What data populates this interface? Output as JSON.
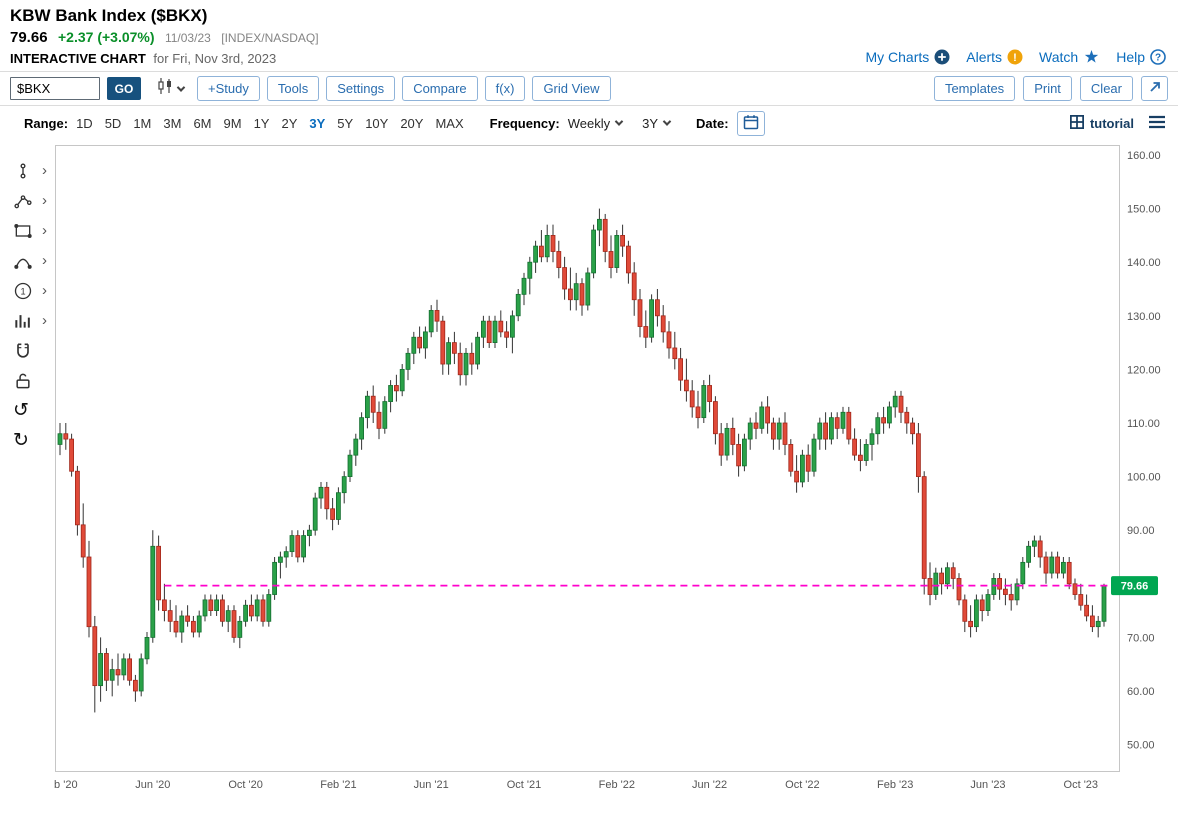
{
  "header": {
    "title": "KBW Bank Index ($BKX)",
    "price": "79.66",
    "change": "+2.37 (+3.07%)",
    "quote_date": "11/03/23",
    "exchange": "[INDEX/NASDAQ]",
    "chart_label": "INTERACTIVE CHART",
    "chart_date": "for Fri, Nov 3rd, 2023",
    "links": [
      {
        "label": "My Charts",
        "icon": "plus-circle"
      },
      {
        "label": "Alerts",
        "icon": "alert-circle"
      },
      {
        "label": "Watch",
        "icon": "star"
      },
      {
        "label": "Help",
        "icon": "question-circle"
      }
    ]
  },
  "toolbar": {
    "symbol_value": "$BKX",
    "go_label": "GO",
    "buttons": [
      "+Study",
      "Tools",
      "Settings",
      "Compare",
      "f(x)",
      "Grid View"
    ],
    "right_buttons": [
      "Templates",
      "Print",
      "Clear"
    ]
  },
  "rangebar": {
    "range_label": "Range:",
    "ranges": [
      "1D",
      "5D",
      "1M",
      "3M",
      "6M",
      "9M",
      "1Y",
      "2Y",
      "3Y",
      "5Y",
      "10Y",
      "20Y",
      "MAX"
    ],
    "selected_range": "3Y",
    "frequency_label": "Frequency:",
    "frequency_value": "Weekly",
    "period_value": "3Y",
    "date_label": "Date:",
    "tutorial_label": "tutorial"
  },
  "icons": {
    "chart_type": "candlestick-icon",
    "popout": "open-in-new-icon",
    "calendar": "calendar-icon",
    "tutorial": "grid-icon",
    "menu": "hamburger-icon",
    "select_caret": "chevron-down-icon",
    "submenu_glyph": "›"
  },
  "drawing_tools": [
    {
      "name": "annotation",
      "submenu": true
    },
    {
      "name": "line-studies",
      "submenu": true
    },
    {
      "name": "shapes",
      "submenu": true
    },
    {
      "name": "arcs",
      "submenu": true
    },
    {
      "name": "numbered-notes",
      "submenu": true
    },
    {
      "name": "symbols",
      "submenu": true
    },
    {
      "name": "magnet",
      "submenu": false
    },
    {
      "name": "unlock",
      "submenu": false
    },
    {
      "name": "undo",
      "submenu": false
    },
    {
      "name": "redo",
      "submenu": false
    }
  ],
  "colors": {
    "accent_blue": "#0a6cbd",
    "button_border": "#8fb3d9",
    "button_text": "#2a6daf",
    "go_bg": "#17517e",
    "positive_green": "#0a8f29",
    "up": "#2aa148",
    "up_stroke": "#156f31",
    "down": "#e04a39",
    "down_stroke": "#a1271b",
    "wick": "#333333",
    "price_line": "#ff00cc",
    "badge_bg": "#00a651",
    "alert_orange": "#f0a30a",
    "dark_navy": "#173e63",
    "axis_text": "#555555",
    "border_gray": "#dcdcdc"
  },
  "chart_data": {
    "type": "candlestick",
    "symbol": "$BKX",
    "title": "KBW Bank Index ($BKX), Weekly, 3Y",
    "frequency": "Weekly",
    "range": "3Y",
    "grid": false,
    "last_price": 79.66,
    "price_line": {
      "value": 79.66,
      "label": "79.66",
      "start_index": 18
    },
    "y_axis": {
      "min": 50,
      "max": 160,
      "step": 10
    },
    "y_ticks": [
      {
        "value": 160,
        "label": "160.00"
      },
      {
        "value": 150,
        "label": "150.00"
      },
      {
        "value": 140,
        "label": "140.00"
      },
      {
        "value": 130,
        "label": "130.00"
      },
      {
        "value": 120,
        "label": "120.00"
      },
      {
        "value": 110,
        "label": "110.00"
      },
      {
        "value": 100,
        "label": "100.00"
      },
      {
        "value": 90,
        "label": "90.00"
      },
      {
        "value": 80,
        "label": "80.00"
      },
      {
        "value": 70,
        "label": "70.00"
      },
      {
        "value": 60,
        "label": "60.00"
      },
      {
        "value": 50,
        "label": "50.00"
      }
    ],
    "x_ticks": [
      {
        "index": 1,
        "label": "b '20"
      },
      {
        "index": 16,
        "label": "Jun '20"
      },
      {
        "index": 32,
        "label": "Oct '20"
      },
      {
        "index": 48,
        "label": "Feb '21"
      },
      {
        "index": 64,
        "label": "Jun '21"
      },
      {
        "index": 80,
        "label": "Oct '21"
      },
      {
        "index": 96,
        "label": "Feb '22"
      },
      {
        "index": 112,
        "label": "Jun '22"
      },
      {
        "index": 128,
        "label": "Oct '22"
      },
      {
        "index": 144,
        "label": "Feb '23"
      },
      {
        "index": 160,
        "label": "Jun '23"
      },
      {
        "index": 176,
        "label": "Oct '23"
      }
    ],
    "ohlc": [
      [
        106,
        110,
        104,
        108
      ],
      [
        108,
        110,
        105,
        107
      ],
      [
        107,
        108,
        100,
        101
      ],
      [
        101,
        102,
        89,
        91
      ],
      [
        91,
        95,
        83,
        85
      ],
      [
        85,
        88,
        70,
        72
      ],
      [
        72,
        74,
        56,
        61
      ],
      [
        61,
        70,
        58,
        67
      ],
      [
        67,
        68,
        60,
        62
      ],
      [
        62,
        66,
        59,
        64
      ],
      [
        64,
        67,
        61,
        63
      ],
      [
        63,
        67,
        62,
        66
      ],
      [
        66,
        67,
        61,
        62
      ],
      [
        62,
        63,
        58,
        60
      ],
      [
        60,
        67,
        59,
        66
      ],
      [
        66,
        71,
        65,
        70
      ],
      [
        70,
        90,
        69,
        87
      ],
      [
        87,
        89,
        75,
        77
      ],
      [
        77,
        80,
        73,
        75
      ],
      [
        75,
        77,
        71,
        73
      ],
      [
        73,
        76,
        70,
        71
      ],
      [
        71,
        75,
        69,
        74
      ],
      [
        74,
        76,
        72,
        73
      ],
      [
        73,
        74,
        70,
        71
      ],
      [
        71,
        75,
        70,
        74
      ],
      [
        74,
        78,
        73,
        77
      ],
      [
        77,
        78,
        74,
        75
      ],
      [
        75,
        78,
        74,
        77
      ],
      [
        77,
        78,
        72,
        73
      ],
      [
        73,
        76,
        71,
        75
      ],
      [
        75,
        76,
        69,
        70
      ],
      [
        70,
        74,
        68,
        73
      ],
      [
        73,
        77,
        72,
        76
      ],
      [
        76,
        78,
        73,
        74
      ],
      [
        74,
        78,
        73,
        77
      ],
      [
        77,
        78,
        72,
        73
      ],
      [
        73,
        79,
        72,
        78
      ],
      [
        78,
        85,
        77,
        84
      ],
      [
        84,
        86,
        81,
        85
      ],
      [
        85,
        87,
        83,
        86
      ],
      [
        86,
        90,
        85,
        89
      ],
      [
        89,
        90,
        84,
        85
      ],
      [
        85,
        90,
        84,
        89
      ],
      [
        89,
        91,
        87,
        90
      ],
      [
        90,
        97,
        89,
        96
      ],
      [
        96,
        99,
        94,
        98
      ],
      [
        98,
        99,
        92,
        94
      ],
      [
        94,
        96,
        90,
        92
      ],
      [
        92,
        98,
        91,
        97
      ],
      [
        97,
        101,
        95,
        100
      ],
      [
        100,
        105,
        99,
        104
      ],
      [
        104,
        108,
        102,
        107
      ],
      [
        107,
        112,
        105,
        111
      ],
      [
        111,
        116,
        109,
        115
      ],
      [
        115,
        117,
        110,
        112
      ],
      [
        112,
        114,
        107,
        109
      ],
      [
        109,
        115,
        108,
        114
      ],
      [
        114,
        118,
        112,
        117
      ],
      [
        117,
        119,
        114,
        116
      ],
      [
        116,
        121,
        115,
        120
      ],
      [
        120,
        124,
        118,
        123
      ],
      [
        123,
        127,
        121,
        126
      ],
      [
        126,
        128,
        123,
        124
      ],
      [
        124,
        128,
        122,
        127
      ],
      [
        127,
        132,
        126,
        131
      ],
      [
        131,
        133,
        127,
        129
      ],
      [
        129,
        130,
        119,
        121
      ],
      [
        121,
        126,
        119,
        125
      ],
      [
        125,
        127,
        121,
        123
      ],
      [
        123,
        125,
        117,
        119
      ],
      [
        119,
        124,
        117,
        123
      ],
      [
        123,
        125,
        119,
        121
      ],
      [
        121,
        127,
        120,
        126
      ],
      [
        126,
        130,
        124,
        129
      ],
      [
        129,
        130,
        124,
        125
      ],
      [
        125,
        130,
        124,
        129
      ],
      [
        129,
        131,
        126,
        127
      ],
      [
        127,
        129,
        124,
        126
      ],
      [
        126,
        131,
        123,
        130
      ],
      [
        130,
        135,
        129,
        134
      ],
      [
        134,
        138,
        132,
        137
      ],
      [
        137,
        141,
        134,
        140
      ],
      [
        140,
        144,
        138,
        143
      ],
      [
        143,
        146,
        140,
        141
      ],
      [
        141,
        147,
        140,
        145
      ],
      [
        145,
        147,
        140,
        142
      ],
      [
        142,
        144,
        137,
        139
      ],
      [
        139,
        141,
        133,
        135
      ],
      [
        135,
        139,
        131,
        133
      ],
      [
        133,
        138,
        131,
        136
      ],
      [
        136,
        137,
        130,
        132
      ],
      [
        132,
        139,
        131,
        138
      ],
      [
        138,
        147,
        137,
        146
      ],
      [
        146,
        150,
        143,
        148
      ],
      [
        148,
        149,
        140,
        142
      ],
      [
        142,
        145,
        137,
        139
      ],
      [
        139,
        146,
        138,
        145
      ],
      [
        145,
        147,
        141,
        143
      ],
      [
        143,
        144,
        136,
        138
      ],
      [
        138,
        140,
        130,
        133
      ],
      [
        133,
        135,
        126,
        128
      ],
      [
        128,
        131,
        124,
        126
      ],
      [
        126,
        134,
        125,
        133
      ],
      [
        133,
        135,
        128,
        130
      ],
      [
        130,
        132,
        125,
        127
      ],
      [
        127,
        129,
        122,
        124
      ],
      [
        124,
        127,
        120,
        122
      ],
      [
        122,
        124,
        116,
        118
      ],
      [
        118,
        122,
        114,
        116
      ],
      [
        116,
        118,
        111,
        113
      ],
      [
        113,
        116,
        109,
        111
      ],
      [
        111,
        118,
        110,
        117
      ],
      [
        117,
        119,
        112,
        114
      ],
      [
        114,
        115,
        106,
        108
      ],
      [
        108,
        110,
        102,
        104
      ],
      [
        104,
        110,
        103,
        109
      ],
      [
        109,
        111,
        104,
        106
      ],
      [
        106,
        108,
        100,
        102
      ],
      [
        102,
        108,
        101,
        107
      ],
      [
        107,
        111,
        105,
        110
      ],
      [
        110,
        112,
        107,
        109
      ],
      [
        109,
        114,
        108,
        113
      ],
      [
        113,
        115,
        108,
        110
      ],
      [
        110,
        111,
        105,
        107
      ],
      [
        107,
        111,
        105,
        110
      ],
      [
        110,
        112,
        104,
        106
      ],
      [
        106,
        107,
        100,
        101
      ],
      [
        101,
        104,
        97,
        99
      ],
      [
        99,
        105,
        98,
        104
      ],
      [
        104,
        106,
        99,
        101
      ],
      [
        101,
        108,
        100,
        107
      ],
      [
        107,
        111,
        105,
        110
      ],
      [
        110,
        112,
        105,
        107
      ],
      [
        107,
        112,
        106,
        111
      ],
      [
        111,
        112,
        107,
        109
      ],
      [
        109,
        113,
        108,
        112
      ],
      [
        112,
        113,
        106,
        107
      ],
      [
        107,
        109,
        103,
        104
      ],
      [
        104,
        107,
        101,
        103
      ],
      [
        103,
        107,
        102,
        106
      ],
      [
        106,
        109,
        103,
        108
      ],
      [
        108,
        112,
        106,
        111
      ],
      [
        111,
        113,
        108,
        110
      ],
      [
        110,
        114,
        109,
        113
      ],
      [
        113,
        116,
        111,
        115
      ],
      [
        115,
        116,
        110,
        112
      ],
      [
        112,
        113,
        108,
        110
      ],
      [
        110,
        111,
        106,
        108
      ],
      [
        108,
        110,
        97,
        100
      ],
      [
        100,
        101,
        78,
        81
      ],
      [
        81,
        84,
        76,
        78
      ],
      [
        78,
        83,
        77,
        82
      ],
      [
        82,
        83,
        78,
        80
      ],
      [
        80,
        84,
        79,
        83
      ],
      [
        83,
        84,
        79,
        81
      ],
      [
        81,
        82,
        76,
        77
      ],
      [
        77,
        78,
        71,
        73
      ],
      [
        73,
        76,
        70,
        72
      ],
      [
        72,
        78,
        71,
        77
      ],
      [
        77,
        78,
        73,
        75
      ],
      [
        75,
        79,
        74,
        78
      ],
      [
        78,
        82,
        77,
        81
      ],
      [
        81,
        82,
        77,
        79
      ],
      [
        79,
        81,
        76,
        78
      ],
      [
        78,
        80,
        75,
        77
      ],
      [
        77,
        81,
        76,
        80
      ],
      [
        80,
        85,
        79,
        84
      ],
      [
        84,
        88,
        83,
        87
      ],
      [
        87,
        89,
        85,
        88
      ],
      [
        88,
        89,
        83,
        85
      ],
      [
        85,
        86,
        80,
        82
      ],
      [
        82,
        86,
        81,
        85
      ],
      [
        85,
        86,
        81,
        82
      ],
      [
        82,
        85,
        81,
        84
      ],
      [
        84,
        85,
        79,
        80
      ],
      [
        80,
        81,
        77,
        78
      ],
      [
        78,
        80,
        75,
        76
      ],
      [
        76,
        78,
        73,
        74
      ],
      [
        74,
        76,
        71,
        72
      ],
      [
        72,
        74,
        70,
        73
      ],
      [
        73,
        80,
        72,
        79.66
      ]
    ]
  }
}
